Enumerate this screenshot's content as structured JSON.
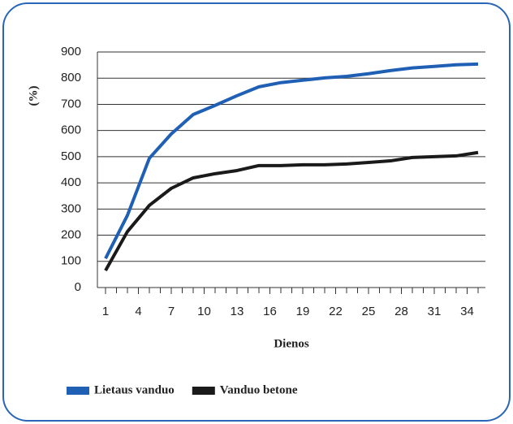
{
  "chart_data": {
    "type": "line",
    "y_label": "(%)",
    "x_label": "Dienos",
    "x": [
      1,
      3,
      5,
      7,
      9,
      11,
      13,
      15,
      17,
      19,
      21,
      23,
      25,
      27,
      29,
      31,
      33,
      35
    ],
    "series": [
      {
        "name": "Lietaus vanduo",
        "color": "#1f5fb4",
        "values": [
          111,
          276,
          494,
          587,
          661,
          696,
          733,
          767,
          783,
          792,
          801,
          807,
          817,
          829,
          839,
          845,
          851,
          854
        ]
      },
      {
        "name": "Vanduo betone",
        "color": "#1a1a1a",
        "values": [
          65,
          214,
          314,
          379,
          419,
          435,
          447,
          466,
          466,
          469,
          469,
          472,
          478,
          484,
          497,
          500,
          503,
          516
        ]
      }
    ],
    "xlim": [
      1,
      35
    ],
    "xticks": [
      1,
      4,
      7,
      10,
      13,
      16,
      19,
      22,
      25,
      28,
      31,
      34
    ],
    "ylim": [
      0,
      900
    ],
    "yticks": [
      0,
      100,
      200,
      300,
      400,
      500,
      600,
      700,
      800,
      900
    ],
    "grid": true,
    "legend": "bottom"
  }
}
